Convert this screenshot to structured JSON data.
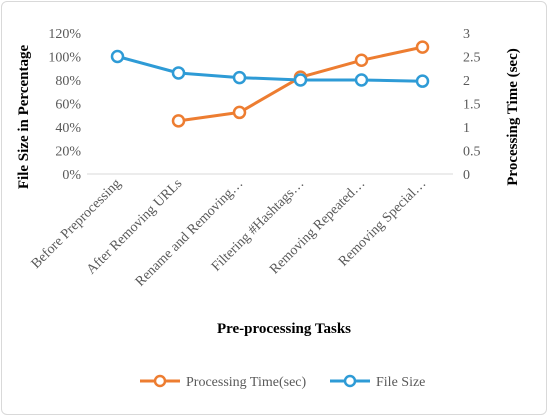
{
  "chart_data": {
    "type": "line",
    "title": "",
    "categories": [
      "Before Preprocessing",
      "After Removing URLs",
      "Rename and Removing…",
      "Filtering #Hashtags…",
      "Removing Repeated…",
      "Removing Special…"
    ],
    "xlabel": "Pre-processing Tasks",
    "ylabel_left": "File Size in Percentage",
    "ylabel_right": "Processing Time (sec)",
    "y_left": {
      "min": 0,
      "max": 1.2,
      "step": 0.2,
      "ticks": [
        "0%",
        "20%",
        "40%",
        "60%",
        "80%",
        "100%",
        "120%"
      ]
    },
    "y_right": {
      "min": 0,
      "max": 3,
      "step": 0.5,
      "ticks": [
        "0",
        "0.5",
        "1",
        "1.5",
        "2",
        "2.5",
        "3"
      ]
    },
    "series": [
      {
        "name": "Processing Time(sec)",
        "axis": "right",
        "color": "#ED7D31",
        "values": [
          null,
          1.13,
          1.31,
          2.06,
          2.42,
          2.7
        ]
      },
      {
        "name": "File Size",
        "axis": "left",
        "color": "#2E9BD6",
        "values": [
          1.0,
          0.86,
          0.82,
          0.8,
          0.8,
          0.79
        ]
      }
    ],
    "grid": false,
    "legend_position": "bottom"
  }
}
